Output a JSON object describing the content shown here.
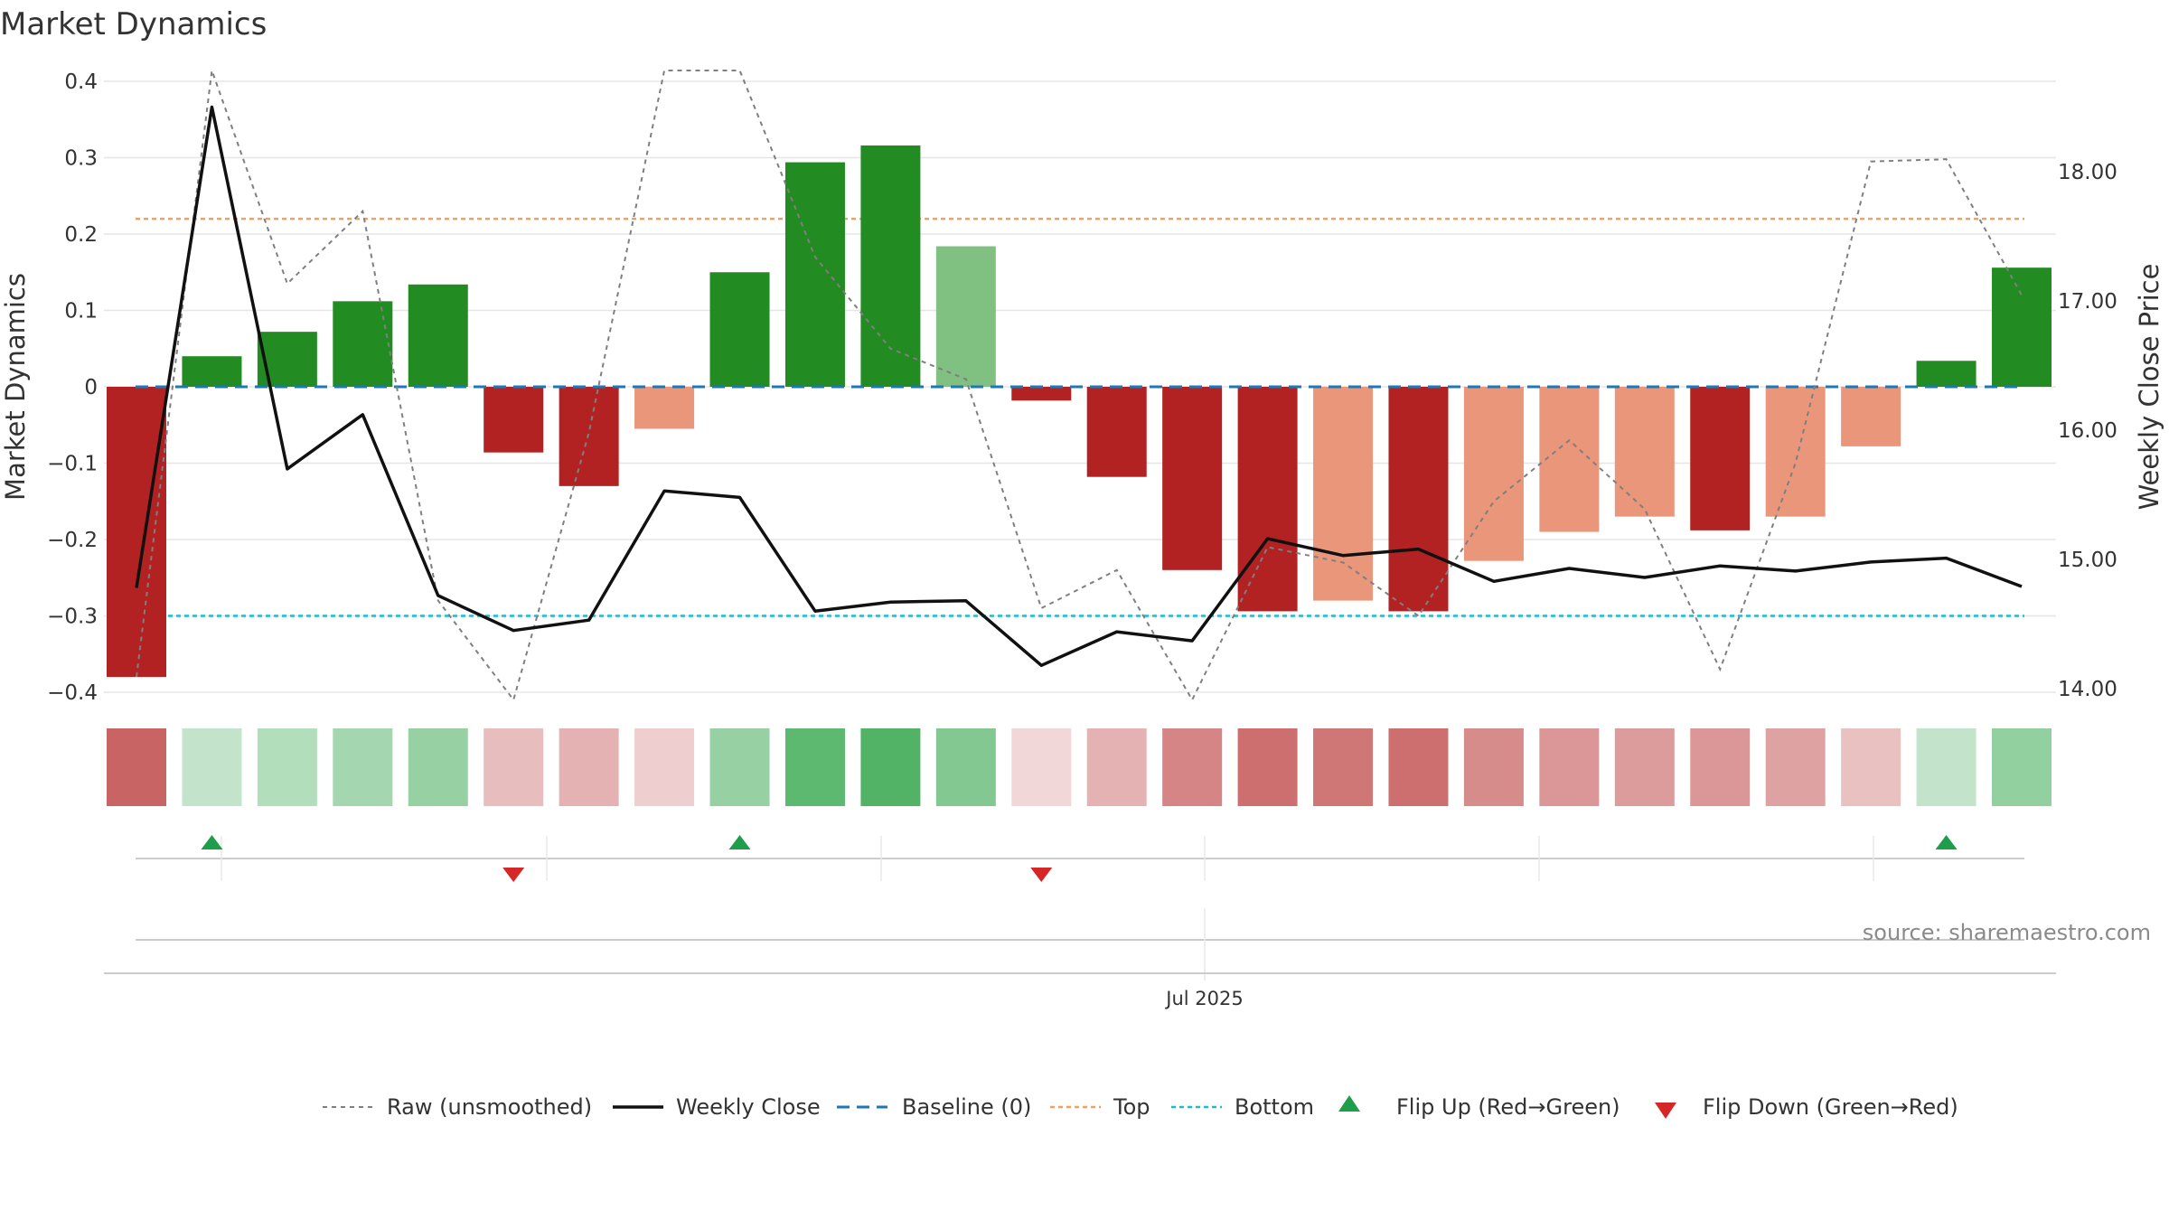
{
  "colors": {
    "positive_strong": "#228b22",
    "positive_weak": "#80c080",
    "negative_strong": "#b22222",
    "negative_weak": "#e9967a",
    "raw_line": "#7f7f7f",
    "weekly_close": "#111111",
    "baseline": "#1f77b4",
    "top": "#f0a060",
    "bottom": "#17becf",
    "flip_up": "#1e9e4a",
    "flip_down": "#d62728",
    "grid": "#e6e6e6"
  },
  "chart_data": {
    "type": "bar",
    "title": "Market Dynamics",
    "ylabel": "Market Dynamics",
    "y2label": "Weekly Close Price",
    "ylim": [
      -0.4,
      0.4
    ],
    "y2lim": [
      14.0,
      18.0
    ],
    "yticks": [
      "0.4",
      "0.3",
      "0.2",
      "0.1",
      "0",
      "−0.1",
      "−0.2",
      "−0.3",
      "−0.4"
    ],
    "y2ticks": [
      "18.00",
      "17.00",
      "16.00",
      "15.00",
      "14.00"
    ],
    "x_label": "Jul 2025",
    "values": [
      -0.38,
      0.04,
      0.072,
      0.112,
      0.134,
      -0.086,
      -0.13,
      -0.055,
      0.15,
      0.294,
      0.316,
      0.184,
      -0.018,
      -0.118,
      -0.24,
      -0.294,
      -0.28,
      -0.294,
      -0.228,
      -0.19,
      -0.17,
      -0.188,
      -0.17,
      -0.078,
      0.034,
      0.156
    ],
    "strength": [
      "strong",
      "strong",
      "strong",
      "strong",
      "strong",
      "strong",
      "strong",
      "weak",
      "strong",
      "strong",
      "strong",
      "weak",
      "strong",
      "strong",
      "strong",
      "strong",
      "weak",
      "strong",
      "weak",
      "weak",
      "weak",
      "strong",
      "weak",
      "weak",
      "strong",
      "strong"
    ],
    "raw_values": [
      -0.38,
      0.45,
      0.135,
      0.23,
      -0.28,
      -0.41,
      -0.06,
      0.7,
      0.6,
      0.17,
      0.05,
      0.01,
      -0.29,
      -0.24,
      -0.41,
      -0.21,
      -0.23,
      -0.3,
      -0.15,
      -0.07,
      -0.16,
      -0.37,
      -0.1,
      0.295,
      0.298,
      0.12
    ],
    "weekly_close": [
      14.78,
      18.5,
      15.7,
      16.12,
      14.72,
      14.45,
      14.53,
      15.53,
      15.48,
      14.6,
      14.67,
      14.68,
      14.18,
      14.44,
      14.37,
      15.16,
      15.03,
      15.08,
      14.83,
      14.93,
      14.86,
      14.95,
      14.91,
      14.98,
      15.01,
      14.79
    ],
    "top": 0.22,
    "bottom": -0.3,
    "baseline": 0,
    "heat_intensity": [
      0.7,
      0.28,
      0.35,
      0.42,
      0.48,
      0.3,
      0.35,
      0.22,
      0.48,
      0.75,
      0.8,
      0.58,
      0.18,
      0.35,
      0.55,
      0.65,
      0.62,
      0.65,
      0.52,
      0.47,
      0.45,
      0.47,
      0.42,
      0.28,
      0.28,
      0.5
    ],
    "flip_up_indices": [
      1,
      8,
      24
    ],
    "flip_down_indices": [
      5,
      12
    ],
    "series": [
      {
        "name": "Raw (unsmoothed)"
      },
      {
        "name": "Weekly Close"
      },
      {
        "name": "Baseline (0)"
      },
      {
        "name": "Top"
      },
      {
        "name": "Bottom"
      },
      {
        "name": "Flip Up (Red→Green)"
      },
      {
        "name": "Flip Down (Green→Red)"
      }
    ]
  },
  "source": "source: sharemaestro.com"
}
